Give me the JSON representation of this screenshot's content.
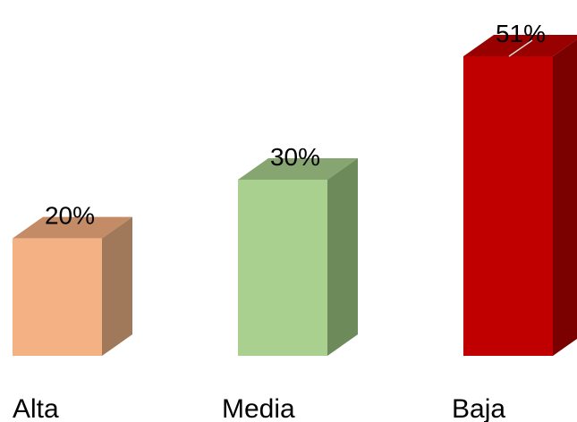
{
  "chart_data": {
    "type": "bar",
    "style": "3d",
    "categories": [
      "Alta",
      "Media",
      "Baja"
    ],
    "values": [
      20,
      30,
      51
    ],
    "data_labels": [
      "20%",
      "30%",
      "51%"
    ],
    "ylim": [
      0,
      51
    ],
    "grid": false,
    "legend": "none",
    "colors": [
      {
        "front": "#F4B183",
        "side": "#A0785A",
        "top": "#C38B66"
      },
      {
        "front": "#A9D08E",
        "side": "#6D8A5B",
        "top": "#86A571"
      },
      {
        "front": "#C00000",
        "side": "#7B0000",
        "top": "#990000"
      }
    ]
  }
}
